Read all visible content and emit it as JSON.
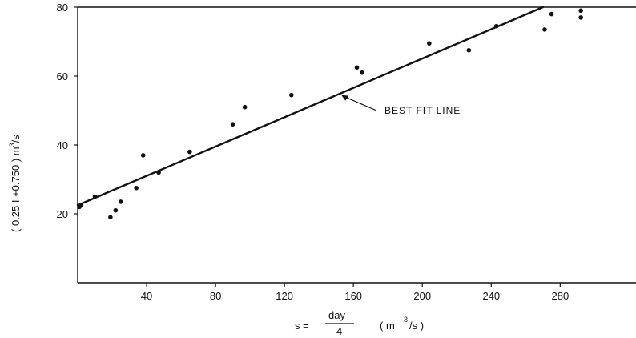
{
  "chart_data": {
    "type": "scatter",
    "title": "",
    "xlabel": {
      "lhs": "s =",
      "numerator": "day",
      "denominator": "4",
      "units_open": "( m",
      "units_exp": "3",
      "units_close": "/s )"
    },
    "ylabel": {
      "main": "( 0.25 I  +0.750 )  m",
      "exp": "3",
      "tail": "/s"
    },
    "xlim": [
      0,
      324
    ],
    "ylim": [
      0,
      80
    ],
    "xticks": [
      40,
      80,
      120,
      160,
      200,
      240,
      280
    ],
    "yticks": [
      20,
      40,
      60,
      80
    ],
    "grid": false,
    "points": [
      {
        "x": 1,
        "y": 22
      },
      {
        "x": 2,
        "y": 22.5
      },
      {
        "x": 10,
        "y": 25
      },
      {
        "x": 19,
        "y": 19
      },
      {
        "x": 22,
        "y": 21
      },
      {
        "x": 25,
        "y": 23.5
      },
      {
        "x": 34,
        "y": 27.5
      },
      {
        "x": 38,
        "y": 37
      },
      {
        "x": 47,
        "y": 32
      },
      {
        "x": 65,
        "y": 38
      },
      {
        "x": 90,
        "y": 46
      },
      {
        "x": 97,
        "y": 51
      },
      {
        "x": 124,
        "y": 54.5
      },
      {
        "x": 162,
        "y": 62.5
      },
      {
        "x": 165,
        "y": 61
      },
      {
        "x": 204,
        "y": 69.5
      },
      {
        "x": 227,
        "y": 67.5
      },
      {
        "x": 243,
        "y": 74.5
      },
      {
        "x": 271,
        "y": 73.5
      },
      {
        "x": 275,
        "y": 78
      },
      {
        "x": 292,
        "y": 79
      },
      {
        "x": 292,
        "y": 77
      }
    ],
    "fit_line": {
      "x": [
        0,
        270
      ],
      "y": [
        22.5,
        80
      ]
    },
    "annotation": {
      "text": "BEST  FIT  LINE",
      "target_x": 153,
      "target_y": 54.5
    }
  }
}
